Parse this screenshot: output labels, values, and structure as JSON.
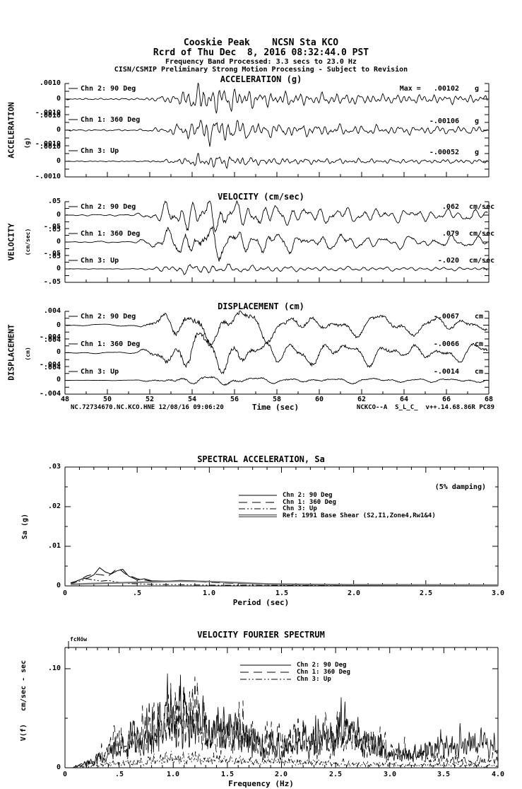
{
  "header": {
    "line1": "Cooskie Peak    NCSN Sta KCO",
    "line2": "Rcrd of Thu Dec  8, 2016 08:32:44.0 PST",
    "line3": "Frequency Band Processed: 3.3 secs to 23.0 Hz",
    "line4": "CISN/CSMIP Preliminary Strong Motion Processing - Subject to Revision"
  },
  "accel": {
    "title": "ACCELERATION (g)",
    "side": "ACCELERATION",
    "side_unit": "(g)",
    "tick_top": ".0010",
    "tick_zero": "0",
    "tick_bottom": "-.0010",
    "channels": [
      {
        "label": "Chn 2: 90 Deg",
        "peak": "Max =   .00102",
        "unit": "g"
      },
      {
        "label": "Chn 1: 360 Deg",
        "peak": "-.00106",
        "unit": "g"
      },
      {
        "label": "Chn 3: Up",
        "peak": "-.00052",
        "unit": "g"
      }
    ]
  },
  "vel": {
    "title": "VELOCITY (cm/sec)",
    "side": "VELOCITY",
    "side_unit": "(cm/sec)",
    "tick_top": ".05",
    "tick_zero": "0",
    "tick_bottom": "-.05",
    "channels": [
      {
        "label": "Chn 2: 90 Deg",
        "peak": ".062",
        "unit": "cm/sec"
      },
      {
        "label": "Chn 1: 360 Deg",
        "peak": ".079",
        "unit": "cm/sec"
      },
      {
        "label": "Chn 3: Up",
        "peak": "-.020",
        "unit": "cm/sec"
      }
    ]
  },
  "disp": {
    "title": "DISPLACEMENT (cm)",
    "side": "DISPLACEMENT",
    "side_unit": "(cm)",
    "tick_top": ".004",
    "tick_zero": "0",
    "tick_bottom": "-.004",
    "channels": [
      {
        "label": "Chn 2: 90 Deg",
        "peak": "-.0067",
        "unit": "cm"
      },
      {
        "label": "Chn 1: 360 Deg",
        "peak": "-.0066",
        "unit": "cm"
      },
      {
        "label": "Chn 3: Up",
        "peak": "-.0014",
        "unit": "cm"
      }
    ]
  },
  "time_axis": {
    "ticks": [
      "48",
      "50",
      "52",
      "54",
      "56",
      "58",
      "60",
      "62",
      "64",
      "66",
      "68"
    ],
    "label": "Time (sec)",
    "footer_left": "NC.72734670.NC.KCO.HNE 12/08/16 09:06:20",
    "footer_right": "NCKCO--A  S_L_C_  v++.14.68.86R PC89"
  },
  "sa": {
    "title": "SPECTRAL ACCELERATION, Sa",
    "damping": "(5% damping)",
    "ylabel": "Sa (g)",
    "xlabel": "Period (sec)",
    "yticks": [
      ".03",
      ".02",
      ".01",
      "0"
    ],
    "xticks": [
      "0",
      ".5",
      "1.0",
      "1.5",
      "2.0",
      "2.5",
      "3.0"
    ],
    "legend": [
      {
        "label": "Chn 2: 90 Deg"
      },
      {
        "label": "Chn 1: 360 Deg"
      },
      {
        "label": "Chn 3: Up"
      },
      {
        "label": "Ref: 1991 Base Shear (S2,I1,Zone4,Rw1&4)"
      }
    ]
  },
  "fourier": {
    "title": "VELOCITY FOURIER SPECTRUM",
    "corner_label": "fcHöw",
    "ylabel": "V(f)   cm/sec - sec",
    "xlabel": "Frequency (Hz)",
    "yticks": [
      ".10",
      "0"
    ],
    "xticks": [
      "0",
      ".5",
      "1.0",
      "1.5",
      "2.0",
      "2.5",
      "3.0",
      "3.5",
      "4.0"
    ],
    "legend": [
      {
        "label": "Chn 2: 90 Deg"
      },
      {
        "label": "Chn 1: 360 Deg"
      },
      {
        "label": "Chn 3: Up"
      }
    ]
  },
  "chart_data": [
    {
      "type": "line",
      "id": "acceleration_time_series",
      "title": "ACCELERATION (g)",
      "xlabel": "Time (sec)",
      "xlim": [
        48,
        68
      ],
      "ylim_g": [
        -0.001,
        0.001
      ],
      "series": [
        {
          "name": "Chn 2: 90 Deg",
          "peak_g": 0.00102
        },
        {
          "name": "Chn 1: 360 Deg",
          "peak_g": -0.00106
        },
        {
          "name": "Chn 3: Up",
          "peak_g": -0.00052
        }
      ],
      "envelope_tfrac_amp": [
        [
          0,
          0.05
        ],
        [
          0.17,
          0.06
        ],
        [
          0.2,
          0.12
        ],
        [
          0.24,
          0.25
        ],
        [
          0.28,
          0.55
        ],
        [
          0.32,
          1.0
        ],
        [
          0.38,
          0.85
        ],
        [
          0.45,
          0.55
        ],
        [
          0.55,
          0.42
        ],
        [
          0.65,
          0.38
        ],
        [
          0.75,
          0.32
        ],
        [
          0.85,
          0.3
        ],
        [
          1,
          0.28
        ]
      ]
    },
    {
      "type": "line",
      "id": "velocity_time_series",
      "title": "VELOCITY (cm/sec)",
      "xlabel": "Time (sec)",
      "xlim": [
        48,
        68
      ],
      "ylim_cm_sec": [
        -0.05,
        0.05
      ],
      "series": [
        {
          "name": "Chn 2: 90 Deg",
          "peak": 0.062
        },
        {
          "name": "Chn 1: 360 Deg",
          "peak": 0.079
        },
        {
          "name": "Chn 3: Up",
          "peak": -0.02
        }
      ],
      "envelope_tfrac_amp": [
        [
          0,
          0.04
        ],
        [
          0.16,
          0.05
        ],
        [
          0.2,
          0.3
        ],
        [
          0.25,
          0.75
        ],
        [
          0.3,
          1.0
        ],
        [
          0.36,
          0.9
        ],
        [
          0.42,
          0.7
        ],
        [
          0.5,
          0.55
        ],
        [
          0.6,
          0.45
        ],
        [
          0.7,
          0.4
        ],
        [
          0.8,
          0.35
        ],
        [
          1,
          0.3
        ]
      ]
    },
    {
      "type": "line",
      "id": "displacement_time_series",
      "title": "DISPLACEMENT (cm)",
      "xlabel": "Time (sec)",
      "xlim": [
        48,
        68
      ],
      "ylim_cm": [
        -0.004,
        0.004
      ],
      "series": [
        {
          "name": "Chn 2: 90 Deg",
          "peak": -0.0067
        },
        {
          "name": "Chn 1: 360 Deg",
          "peak": -0.0066
        },
        {
          "name": "Chn 3: Up",
          "peak": -0.0014
        }
      ],
      "envelope_tfrac_amp": [
        [
          0,
          0.04
        ],
        [
          0.16,
          0.05
        ],
        [
          0.2,
          0.35
        ],
        [
          0.25,
          0.9
        ],
        [
          0.3,
          1.0
        ],
        [
          0.36,
          0.95
        ],
        [
          0.45,
          0.7
        ],
        [
          0.55,
          0.6
        ],
        [
          0.65,
          0.55
        ],
        [
          0.75,
          0.5
        ],
        [
          0.9,
          0.45
        ],
        [
          1,
          0.4
        ]
      ]
    },
    {
      "type": "line",
      "id": "spectral_acceleration",
      "title": "SPECTRAL ACCELERATION, Sa",
      "damping": "5%",
      "xlabel": "Period (sec)",
      "ylabel": "Sa (g)",
      "xlim": [
        0,
        3.0
      ],
      "ylim": [
        0,
        0.03
      ],
      "series": [
        {
          "name": "Chn 2: 90 Deg",
          "style": "solid",
          "points": [
            [
              0.04,
              0.0008
            ],
            [
              0.08,
              0.0012
            ],
            [
              0.12,
              0.0018
            ],
            [
              0.16,
              0.002
            ],
            [
              0.2,
              0.0028
            ],
            [
              0.24,
              0.0046
            ],
            [
              0.28,
              0.0035
            ],
            [
              0.32,
              0.003
            ],
            [
              0.36,
              0.0038
            ],
            [
              0.4,
              0.0042
            ],
            [
              0.44,
              0.0025
            ],
            [
              0.5,
              0.0015
            ],
            [
              0.55,
              0.0018
            ],
            [
              0.6,
              0.0013
            ],
            [
              0.7,
              0.0012
            ],
            [
              0.8,
              0.0014
            ],
            [
              0.9,
              0.0013
            ],
            [
              1.0,
              0.0011
            ],
            [
              1.1,
              0.0009
            ],
            [
              1.25,
              0.0006
            ],
            [
              1.5,
              0.0004
            ],
            [
              1.75,
              0.0003
            ],
            [
              2.0,
              0.0002
            ],
            [
              2.5,
              0.00015
            ],
            [
              3.0,
              0.0001
            ]
          ]
        },
        {
          "name": "Chn 1: 360 Deg",
          "style": "longdash",
          "points": [
            [
              0.04,
              0.0007
            ],
            [
              0.1,
              0.0015
            ],
            [
              0.15,
              0.0025
            ],
            [
              0.2,
              0.003
            ],
            [
              0.25,
              0.0028
            ],
            [
              0.3,
              0.0025
            ],
            [
              0.35,
              0.004
            ],
            [
              0.38,
              0.0042
            ],
            [
              0.42,
              0.003
            ],
            [
              0.5,
              0.0018
            ],
            [
              0.6,
              0.0012
            ],
            [
              0.7,
              0.001
            ],
            [
              0.8,
              0.0012
            ],
            [
              0.9,
              0.0011
            ],
            [
              1.0,
              0.0009
            ],
            [
              1.2,
              0.0006
            ],
            [
              1.5,
              0.0003
            ],
            [
              2.0,
              0.0002
            ],
            [
              2.5,
              0.00012
            ],
            [
              3.0,
              0.0001
            ]
          ]
        },
        {
          "name": "Chn 3: Up",
          "style": "dashdot",
          "points": [
            [
              0.04,
              0.0005
            ],
            [
              0.1,
              0.0012
            ],
            [
              0.15,
              0.0018
            ],
            [
              0.2,
              0.0015
            ],
            [
              0.25,
              0.0012
            ],
            [
              0.3,
              0.0014
            ],
            [
              0.35,
              0.001
            ],
            [
              0.45,
              0.0006
            ],
            [
              0.6,
              0.0004
            ],
            [
              0.8,
              0.0003
            ],
            [
              1.0,
              0.0002
            ],
            [
              1.5,
              0.00015
            ],
            [
              2.0,
              0.0001
            ],
            [
              3.0,
              8e-05
            ]
          ]
        },
        {
          "name": "Ref: 1991 Base Shear (S2,I1,Zone4,Rw1&4)",
          "style": "ref",
          "points": [
            [
              0.04,
              0.0004
            ],
            [
              0.2,
              0.0006
            ],
            [
              0.4,
              0.0008
            ],
            [
              0.6,
              0.001
            ],
            [
              0.8,
              0.0012
            ],
            [
              1.0,
              0.0011
            ],
            [
              1.2,
              0.0008
            ],
            [
              1.4,
              0.0005
            ],
            [
              1.7,
              0.0004
            ],
            [
              2.0,
              0.0003
            ],
            [
              2.5,
              0.00025
            ],
            [
              3.0,
              0.0002
            ]
          ]
        }
      ]
    },
    {
      "type": "line",
      "id": "velocity_fourier_spectrum",
      "title": "VELOCITY FOURIER SPECTRUM",
      "xlabel": "Frequency (Hz)",
      "ylabel": "V(f)   cm/sec - sec",
      "xlim": [
        0,
        4.0
      ],
      "ylim": [
        0,
        0.13
      ],
      "ytick_labeled": 0.1,
      "series": [
        {
          "name": "Chn 2: 90 Deg",
          "style": "solid",
          "envelope_ffrac_amp": [
            [
              0,
              0
            ],
            [
              0.03,
              0.003
            ],
            [
              0.08,
              0.012
            ],
            [
              0.12,
              0.03
            ],
            [
              0.16,
              0.04
            ],
            [
              0.2,
              0.055
            ],
            [
              0.24,
              0.075
            ],
            [
              0.27,
              0.09
            ],
            [
              0.3,
              0.07
            ],
            [
              0.34,
              0.05
            ],
            [
              0.38,
              0.055
            ],
            [
              0.42,
              0.04
            ],
            [
              0.46,
              0.03
            ],
            [
              0.5,
              0.028
            ],
            [
              0.55,
              0.035
            ],
            [
              0.6,
              0.05
            ],
            [
              0.64,
              0.055
            ],
            [
              0.68,
              0.04
            ],
            [
              0.72,
              0.03
            ],
            [
              0.76,
              0.022
            ],
            [
              0.8,
              0.018
            ],
            [
              0.85,
              0.025
            ],
            [
              0.9,
              0.035
            ],
            [
              0.95,
              0.035
            ],
            [
              1,
              0.03
            ]
          ]
        },
        {
          "name": "Chn 1: 360 Deg",
          "style": "longdash",
          "envelope_ffrac_amp": [
            [
              0,
              0
            ],
            [
              0.03,
              0.002
            ],
            [
              0.08,
              0.015
            ],
            [
              0.12,
              0.035
            ],
            [
              0.16,
              0.045
            ],
            [
              0.2,
              0.05
            ],
            [
              0.24,
              0.065
            ],
            [
              0.28,
              0.08
            ],
            [
              0.31,
              0.065
            ],
            [
              0.35,
              0.045
            ],
            [
              0.4,
              0.05
            ],
            [
              0.45,
              0.035
            ],
            [
              0.5,
              0.04
            ],
            [
              0.55,
              0.045
            ],
            [
              0.6,
              0.04
            ],
            [
              0.65,
              0.045
            ],
            [
              0.7,
              0.035
            ],
            [
              0.75,
              0.025
            ],
            [
              0.8,
              0.02
            ],
            [
              0.85,
              0.015
            ],
            [
              0.9,
              0.012
            ],
            [
              0.95,
              0.01
            ],
            [
              1,
              0.012
            ]
          ]
        },
        {
          "name": "Chn 3: Up",
          "style": "dashdot",
          "envelope_ffrac_amp": [
            [
              0,
              0
            ],
            [
              0.05,
              0.002
            ],
            [
              0.1,
              0.005
            ],
            [
              0.15,
              0.008
            ],
            [
              0.2,
              0.01
            ],
            [
              0.25,
              0.012
            ],
            [
              0.3,
              0.014
            ],
            [
              0.35,
              0.012
            ],
            [
              0.4,
              0.01
            ],
            [
              0.45,
              0.008
            ],
            [
              0.5,
              0.009
            ],
            [
              0.55,
              0.008
            ],
            [
              0.6,
              0.007
            ],
            [
              0.65,
              0.006
            ],
            [
              0.7,
              0.005
            ],
            [
              0.75,
              0.005
            ],
            [
              0.8,
              0.004
            ],
            [
              0.85,
              0.004
            ],
            [
              0.9,
              0.004
            ],
            [
              0.95,
              0.003
            ],
            [
              1,
              0.003
            ]
          ]
        }
      ]
    }
  ]
}
